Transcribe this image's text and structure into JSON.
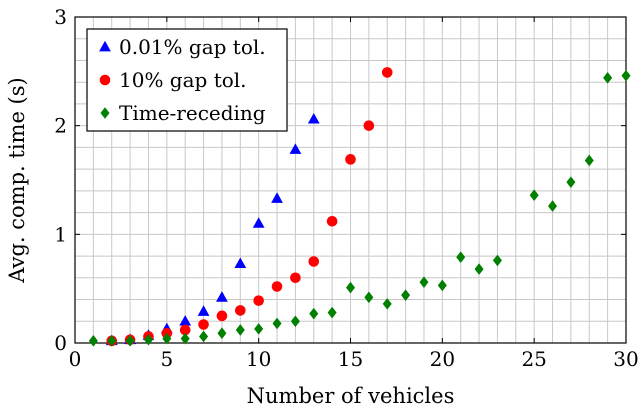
{
  "chart_data": {
    "type": "scatter",
    "xlabel": "Number of vehicles",
    "ylabel": "Avg. comp. time (s)",
    "xlim": [
      0,
      30
    ],
    "ylim": [
      0,
      3
    ],
    "x_ticks": [
      0,
      5,
      10,
      15,
      20,
      25,
      30
    ],
    "y_ticks": [
      0,
      1,
      2,
      3
    ],
    "x_minor_step": 1,
    "y_minor_step": 0.2,
    "grid": true,
    "legend_position": "top-left",
    "series": [
      {
        "name": "0.01% gap tol.",
        "color": "#0000ff",
        "marker": "triangle",
        "x": [
          2,
          3,
          4,
          5,
          6,
          7,
          8,
          9,
          10,
          11,
          12,
          13
        ],
        "y": [
          0.02,
          0.03,
          0.07,
          0.13,
          0.2,
          0.29,
          0.42,
          0.73,
          1.1,
          1.33,
          1.78,
          2.06
        ]
      },
      {
        "name": "10% gap tol.",
        "color": "#ff0000",
        "marker": "circle",
        "x": [
          2,
          3,
          4,
          5,
          6,
          7,
          8,
          9,
          10,
          11,
          12,
          13,
          14,
          15,
          16,
          17
        ],
        "y": [
          0.02,
          0.03,
          0.06,
          0.09,
          0.12,
          0.17,
          0.25,
          0.3,
          0.39,
          0.52,
          0.6,
          0.75,
          1.12,
          1.69,
          2.0,
          2.49
        ]
      },
      {
        "name": "Time-receding",
        "color": "#008000",
        "marker": "diamond",
        "x": [
          1,
          2,
          3,
          4,
          5,
          6,
          7,
          8,
          9,
          10,
          11,
          12,
          13,
          14,
          15,
          16,
          17,
          18,
          19,
          20,
          21,
          22,
          23,
          25,
          26,
          27,
          28,
          29,
          30
        ],
        "y": [
          0.02,
          0.02,
          0.02,
          0.03,
          0.04,
          0.04,
          0.06,
          0.09,
          0.12,
          0.13,
          0.18,
          0.2,
          0.27,
          0.28,
          0.51,
          0.42,
          0.36,
          0.44,
          0.56,
          0.53,
          0.79,
          0.68,
          0.76,
          1.36,
          1.26,
          1.48,
          1.68,
          2.44,
          2.46
        ]
      }
    ]
  }
}
